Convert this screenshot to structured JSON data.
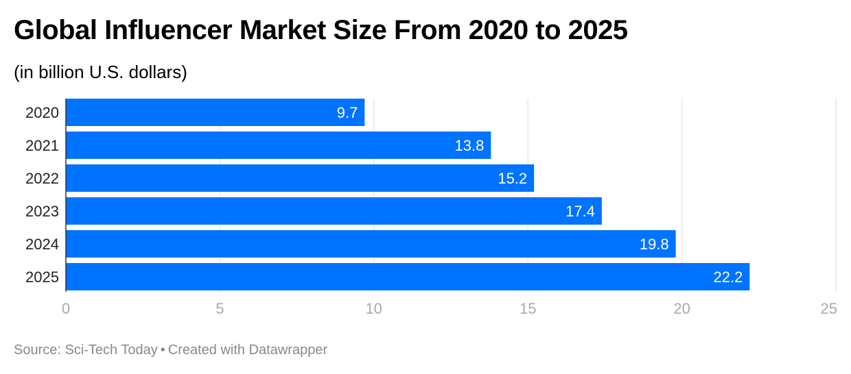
{
  "chart_data": {
    "type": "bar",
    "orientation": "horizontal",
    "title": "Global Influencer Market Size From 2020 to 2025",
    "subtitle": "(in billion U.S. dollars)",
    "categories": [
      "2020",
      "2021",
      "2022",
      "2023",
      "2024",
      "2025"
    ],
    "values": [
      9.7,
      13.8,
      15.2,
      17.4,
      19.8,
      22.2
    ],
    "value_labels": [
      "9.7",
      "13.8",
      "15.2",
      "17.4",
      "19.8",
      "22.2"
    ],
    "xlim": [
      0,
      25
    ],
    "xticks": [
      0,
      5,
      10,
      15,
      20,
      25
    ],
    "xtick_labels": [
      "0",
      "5",
      "10",
      "15",
      "20",
      "25"
    ],
    "grid": true,
    "legend": "none",
    "bar_color": "#0073ff",
    "grid_color": "#e6e6e6",
    "tick_label_color": "#aaaaaa"
  },
  "footer": {
    "source": "Source: Sci-Tech Today",
    "separator": "•",
    "credit": "Created with Datawrapper"
  }
}
